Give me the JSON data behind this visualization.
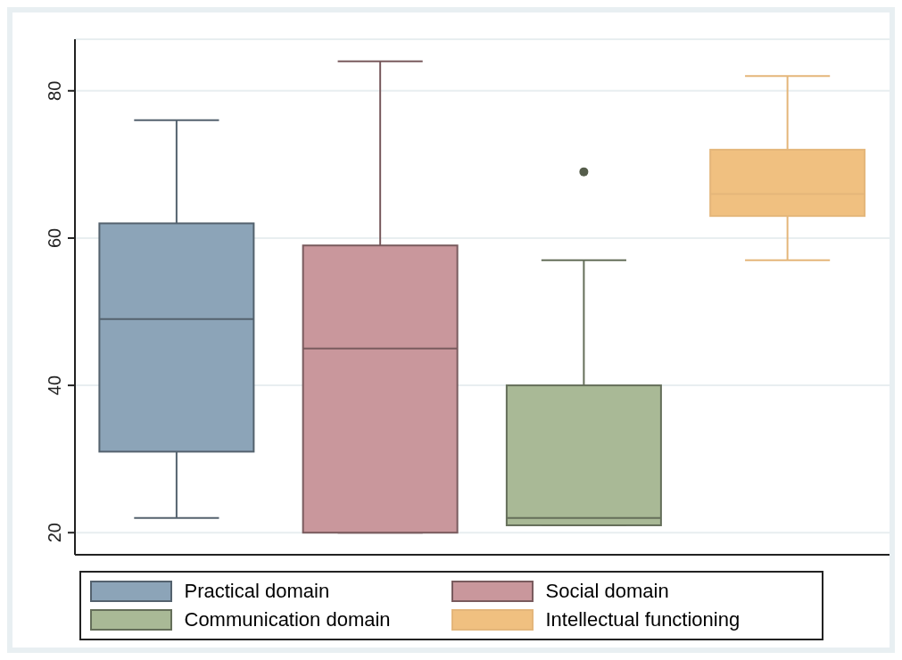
{
  "chart_data": {
    "type": "box",
    "categories": [
      null,
      null,
      null,
      null
    ],
    "series": [
      {
        "name": "Practical domain",
        "color": "#8ca4b8",
        "boxes": [
          {
            "low": 22,
            "q1": 31,
            "median": 49,
            "q3": 62,
            "high": 76
          },
          null,
          null,
          null
        ]
      },
      {
        "name": "Social domain",
        "color": "#c9979c",
        "boxes": [
          null,
          {
            "low": 20,
            "q1": 20,
            "median": 45,
            "q3": 59,
            "high": 84
          },
          null,
          null
        ]
      },
      {
        "name": "Communication domain",
        "color": "#a9b996",
        "boxes": [
          null,
          null,
          {
            "low": 21,
            "q1": 21,
            "median": 22,
            "q3": 40,
            "high": 57,
            "outliers": [
              69
            ]
          },
          null
        ]
      },
      {
        "name": "Intellectual functioning",
        "color": "#f0c080",
        "boxes": [
          null,
          null,
          null,
          {
            "low": 57,
            "q1": 63,
            "median": 66,
            "q3": 72,
            "high": 82
          }
        ]
      }
    ],
    "ylim": [
      17,
      87
    ],
    "yticks": [
      20,
      40,
      60,
      80
    ],
    "grid": "y",
    "legend": "bottom"
  }
}
